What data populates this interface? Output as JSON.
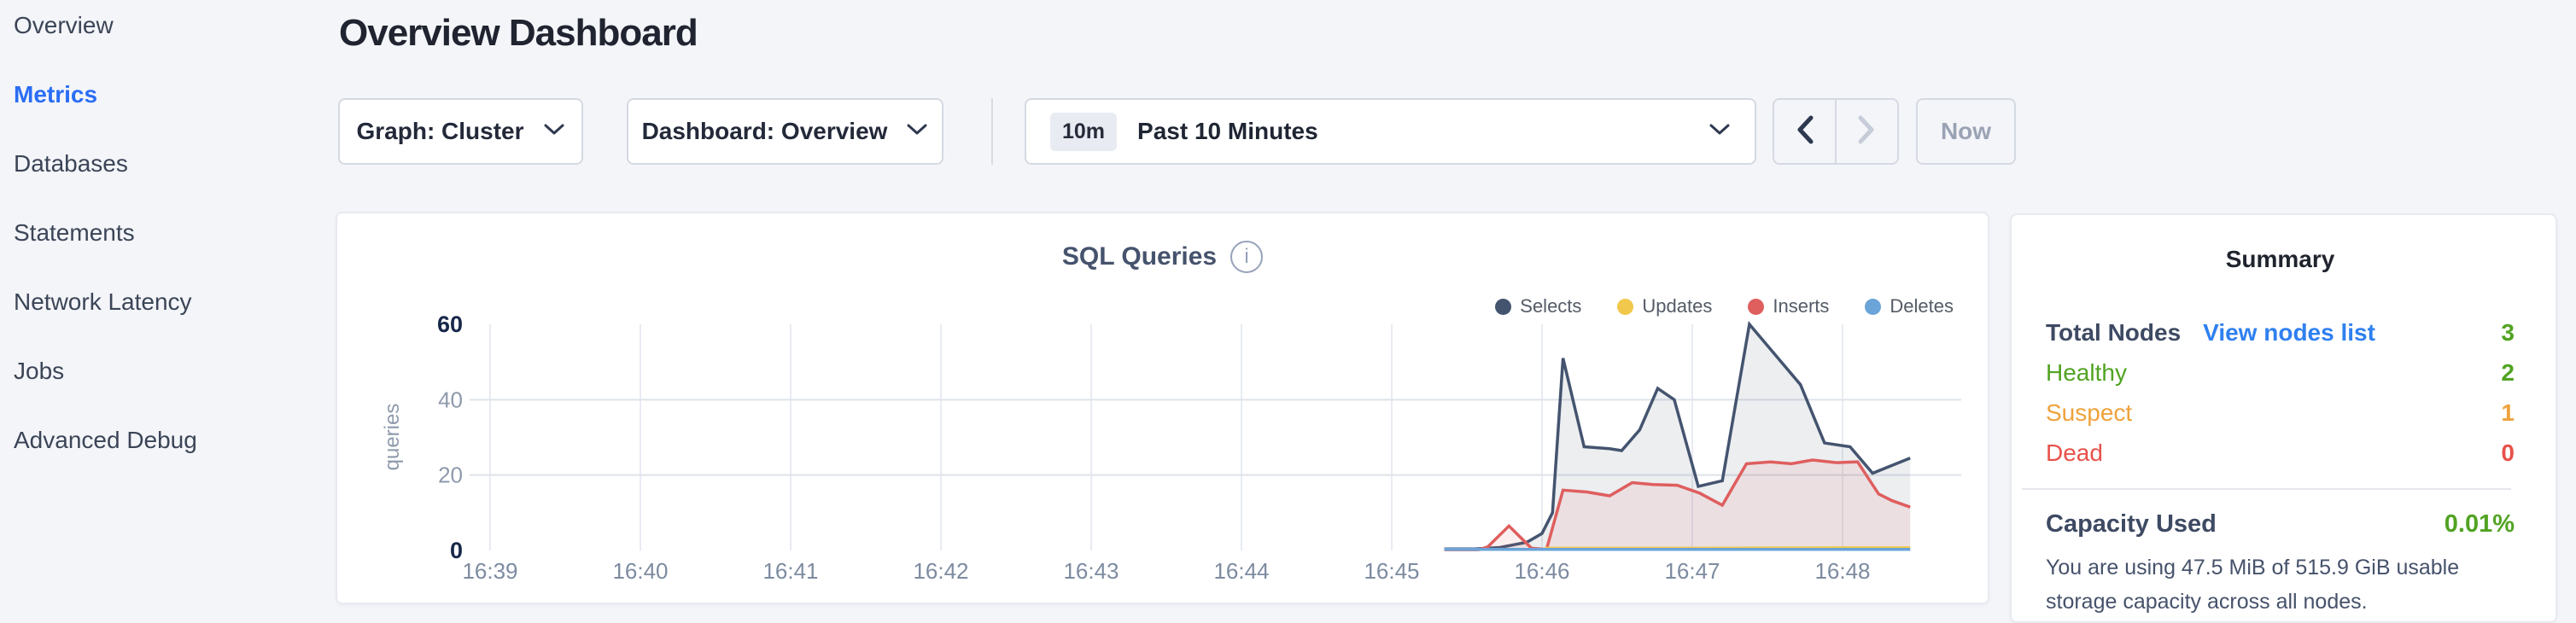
{
  "sidebar": {
    "items": [
      {
        "label": "Overview",
        "active": false
      },
      {
        "label": "Metrics",
        "active": true
      },
      {
        "label": "Databases",
        "active": false
      },
      {
        "label": "Statements",
        "active": false
      },
      {
        "label": "Network Latency",
        "active": false
      },
      {
        "label": "Jobs",
        "active": false
      },
      {
        "label": "Advanced Debug",
        "active": false
      }
    ]
  },
  "header": {
    "title": "Overview Dashboard"
  },
  "toolbar": {
    "graph_dropdown_label": "Graph: Cluster",
    "dashboard_dropdown_label": "Dashboard: Overview",
    "time_badge": "10m",
    "time_label": "Past 10 Minutes",
    "now_label": "Now"
  },
  "colors": {
    "green": "#51a322",
    "orange": "#efa23b",
    "red": "#e8514a",
    "link": "#2f80f0",
    "dark-label": "#3e4a63",
    "active-nav": "#2a6df5"
  },
  "chart_card": {
    "title": "SQL Queries"
  },
  "chart_data": {
    "type": "area",
    "title": "SQL Queries",
    "ylabel": "queries",
    "xlabel": "",
    "x_ticks": [
      "16:39",
      "16:40",
      "16:41",
      "16:42",
      "16:43",
      "16:44",
      "16:45",
      "16:46",
      "16:47",
      "16:48"
    ],
    "y_ticks": [
      0,
      20,
      40,
      60
    ],
    "ylim": [
      0,
      60
    ],
    "grid_horizontal_at": [
      20,
      40
    ],
    "legend_position": "top-right",
    "x_unit": "minutes offset from 16:39 tick",
    "series": [
      {
        "name": "Selects",
        "color": "#44546f",
        "fill_opacity": 0.1,
        "points": [
          [
            6.35,
            0.4
          ],
          [
            6.55,
            0.4
          ],
          [
            6.72,
            0.8
          ],
          [
            6.9,
            2.2
          ],
          [
            7.0,
            4.5
          ],
          [
            7.07,
            10
          ],
          [
            7.14,
            51
          ],
          [
            7.28,
            27.5
          ],
          [
            7.45,
            27
          ],
          [
            7.53,
            26.5
          ],
          [
            7.65,
            32
          ],
          [
            7.77,
            43
          ],
          [
            7.88,
            40
          ],
          [
            8.04,
            17
          ],
          [
            8.2,
            18.5
          ],
          [
            8.38,
            60
          ],
          [
            8.56,
            51.5
          ],
          [
            8.72,
            44
          ],
          [
            8.88,
            28.5
          ],
          [
            9.05,
            27.5
          ],
          [
            9.2,
            20.5
          ],
          [
            9.45,
            24.5
          ]
        ]
      },
      {
        "name": "Inserts",
        "color": "#df5e5e",
        "fill_opacity": 0.1,
        "points": [
          [
            6.35,
            0.2
          ],
          [
            6.58,
            0.2
          ],
          [
            6.64,
            1
          ],
          [
            6.78,
            6.5
          ],
          [
            6.93,
            0.6
          ],
          [
            7.03,
            0.3
          ],
          [
            7.14,
            16
          ],
          [
            7.3,
            15.5
          ],
          [
            7.45,
            14.5
          ],
          [
            7.6,
            18
          ],
          [
            7.74,
            17.5
          ],
          [
            7.9,
            17.3
          ],
          [
            8.05,
            15.2
          ],
          [
            8.2,
            12
          ],
          [
            8.36,
            23
          ],
          [
            8.52,
            23.5
          ],
          [
            8.66,
            23
          ],
          [
            8.8,
            24
          ],
          [
            8.96,
            23.3
          ],
          [
            9.1,
            23.5
          ],
          [
            9.24,
            15
          ],
          [
            9.33,
            13.2
          ],
          [
            9.45,
            11.5
          ]
        ]
      },
      {
        "name": "Updates",
        "color": "#f1c84b",
        "fill_opacity": 0,
        "points": [
          [
            7.02,
            0.6
          ],
          [
            8.0,
            0.6
          ],
          [
            9.0,
            0.7
          ],
          [
            9.45,
            0.7
          ]
        ]
      },
      {
        "name": "Deletes",
        "color": "#6aa4d8",
        "fill_opacity": 0,
        "points": [
          [
            6.35,
            0.3
          ],
          [
            7.5,
            0.3
          ],
          [
            8.5,
            0.3
          ],
          [
            9.45,
            0.3
          ]
        ]
      }
    ],
    "legend": [
      "Selects",
      "Updates",
      "Inserts",
      "Deletes"
    ]
  },
  "summary": {
    "title": "Summary",
    "rows": [
      {
        "label": "Total Nodes",
        "link": "View nodes list",
        "value": "3",
        "color_class": "c-green",
        "label_bold": true
      },
      {
        "label": "Healthy",
        "value": "2",
        "color_class": "c-green"
      },
      {
        "label": "Suspect",
        "value": "1",
        "color_class": "c-orange"
      },
      {
        "label": "Dead",
        "value": "0",
        "color_class": "c-red"
      }
    ],
    "capacity_label": "Capacity Used",
    "capacity_value": "0.01%",
    "capacity_text": "You are using 47.5 MiB of 515.9 GiB usable storage capacity across all nodes."
  }
}
